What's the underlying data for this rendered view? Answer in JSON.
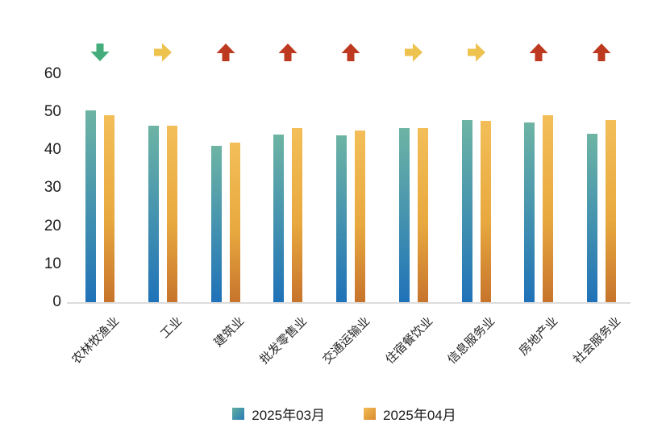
{
  "chart_data": {
    "type": "bar",
    "title": "",
    "xlabel": "",
    "ylabel": "",
    "categories": [
      "农林牧渔业",
      "工业",
      "建筑业",
      "批发零售业",
      "交通运输业",
      "住宿餐饮业",
      "信息服务业",
      "房地产业",
      "社会服务业"
    ],
    "series": [
      {
        "name": "2025年03月",
        "values": [
          50.4,
          46.4,
          41.0,
          44.1,
          43.9,
          45.8,
          47.8,
          47.3,
          44.3
        ]
      },
      {
        "name": "2025年04月",
        "values": [
          49.1,
          46.4,
          42.0,
          45.7,
          45.1,
          45.7,
          47.7,
          49.2,
          47.8
        ]
      }
    ],
    "trend_arrows": [
      "down",
      "flat",
      "up",
      "up",
      "up",
      "flat",
      "flat",
      "up",
      "up"
    ],
    "y_ticks": [
      0,
      10,
      20,
      30,
      40,
      50,
      60
    ],
    "ylim": [
      0,
      63
    ],
    "grid": false,
    "legend_position": "bottom",
    "colors": {
      "series1_gradient_top": "#6db4a4",
      "series1_gradient_bottom": "#1f72b8",
      "series2_gradient_top": "#f3be58",
      "series2_gradient_bottom": "#c7742c",
      "trend_up": "#bd3a20",
      "trend_down": "#45ac7b",
      "trend_flat": "#edc24e",
      "axis_line": "#dcdcdc",
      "text": "#1a1a1a"
    }
  }
}
